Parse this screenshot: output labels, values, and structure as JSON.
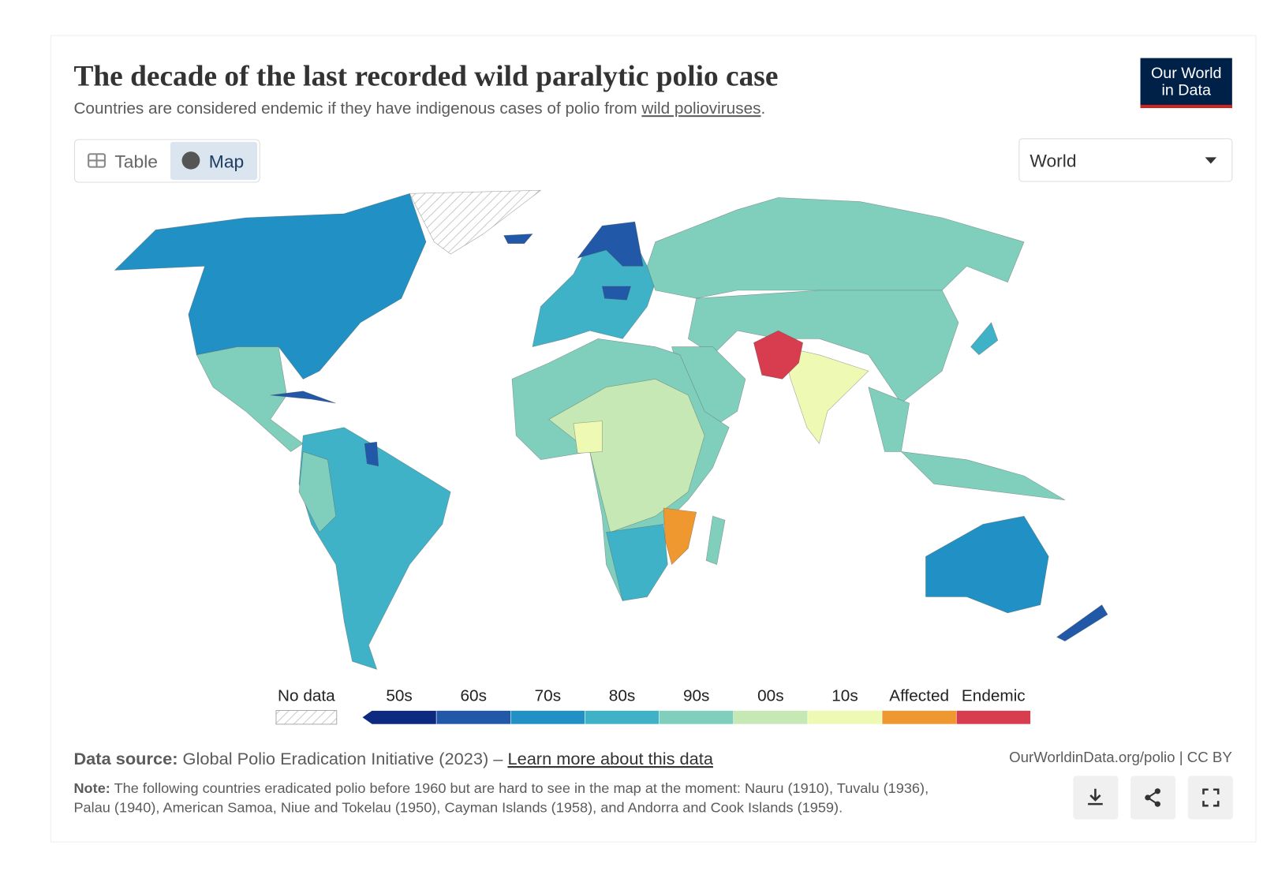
{
  "header": {
    "title": "The decade of the last recorded wild paralytic polio case",
    "subtitle": "Countries are considered endemic if they have indigenous cases of polio from ",
    "subtitle_link": "wild polioviruses",
    "subtitle_end": ".",
    "logo": [
      "Our World",
      "in Data"
    ]
  },
  "controls": {
    "tabs": [
      "Table",
      "Map"
    ],
    "entity_selector": "World"
  },
  "legend": {
    "no_data": "No data",
    "bins": [
      {
        "label": "50s",
        "color": "#0d2a80"
      },
      {
        "label": "60s",
        "color": "#2158a8"
      },
      {
        "label": "70s",
        "color": "#2190c4"
      },
      {
        "label": "80s",
        "color": "#40b2c8"
      },
      {
        "label": "90s",
        "color": "#80cfbc"
      },
      {
        "label": "00s",
        "color": "#c6e8b4"
      },
      {
        "label": "10s",
        "color": "#eefab4"
      },
      {
        "label": "Affected",
        "color": "#ef9830"
      },
      {
        "label": "Endemic",
        "color": "#d73d4e"
      }
    ]
  },
  "footer": {
    "source_label": "Data source:",
    "source": " Global Polio Eradication Initiative (2023) – ",
    "source_link": "Learn more about this data",
    "url": "OurWorldinData.org/polio | CC BY",
    "note_label": "Note:",
    "note_lines": [
      " The following countries eradicated polio before 1960 but are hard to see in the map at the moment: Nauru (1910), Tuvalu (1936),",
      "Palau (1940), American Samoa, Niue and Tokelau (1950), Cayman Islands (1958), and Andorra and Cook Islands (1959)."
    ]
  }
}
